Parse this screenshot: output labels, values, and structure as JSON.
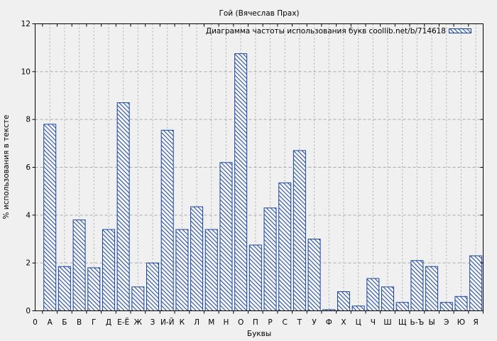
{
  "window": {
    "background": "#f0f0f0"
  },
  "chart_data": {
    "type": "bar",
    "title": "Гой (Вячеслав Прах)",
    "legend": "Диаграмма частоты использования букв coollib.net/b/714618",
    "legend_position": "top-right",
    "xlabel": "Буквы",
    "ylabel": "% использования в тексте",
    "x_origin_label": "0",
    "categories": [
      "А",
      "Б",
      "В",
      "Г",
      "Д",
      "Е-Ё",
      "Ж",
      "З",
      "И-Й",
      "К",
      "Л",
      "М",
      "Н",
      "О",
      "П",
      "Р",
      "С",
      "Т",
      "У",
      "Ф",
      "Х",
      "Ц",
      "Ч",
      "Ш",
      "Щ",
      "Ь-Ъ",
      "Ы",
      "Э",
      "Ю",
      "Я"
    ],
    "values": [
      7.8,
      1.85,
      3.8,
      1.8,
      3.4,
      8.7,
      1.0,
      2.0,
      7.55,
      3.4,
      4.35,
      3.4,
      6.2,
      10.75,
      2.75,
      4.3,
      5.35,
      6.7,
      3.0,
      0.05,
      0.8,
      0.2,
      1.35,
      1.0,
      0.35,
      2.1,
      1.85,
      0.35,
      0.6,
      2.3
    ],
    "y_ticks": [
      0,
      2,
      4,
      6,
      8,
      10,
      12
    ],
    "ylim": [
      0,
      12
    ],
    "grid": true,
    "colors": {
      "bar_outline": "#1a459c",
      "bar_hatch": "#1a459c",
      "bar_fill": "#f5f5f5",
      "grid": "#a9a9a9",
      "axis": "#000000",
      "background": "#f0f0f0",
      "text": "#000000"
    }
  }
}
